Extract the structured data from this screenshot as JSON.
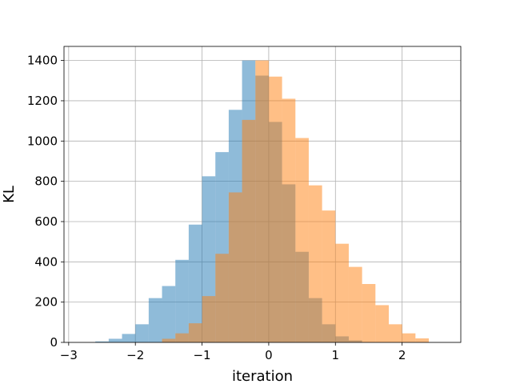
{
  "chart_data": {
    "type": "histogram",
    "xlabel": "iteration",
    "ylabel": "KL",
    "xlim": [
      -3.07,
      2.88
    ],
    "ylim": [
      0,
      1470
    ],
    "xticks": [
      -3,
      -2,
      -1,
      0,
      1,
      2
    ],
    "xtick_labels": [
      "−3",
      "−2",
      "−1",
      "0",
      "1",
      "2"
    ],
    "yticks": [
      0,
      200,
      400,
      600,
      800,
      1000,
      1200,
      1400
    ],
    "ytick_labels": [
      "0",
      "200",
      "400",
      "600",
      "800",
      "1000",
      "1200",
      "1400"
    ],
    "grid": true,
    "series": [
      {
        "color": "#1f77b4",
        "alpha": 0.5,
        "bins": [
          -2.6,
          -2.4,
          -2.2,
          -2.0,
          -1.8,
          -1.6,
          -1.4,
          -1.2,
          -1.0,
          -0.8,
          -0.6,
          -0.4,
          -0.2,
          0.0,
          0.2,
          0.4,
          0.6,
          0.8,
          1.0,
          1.2,
          1.4
        ],
        "values": [
          5,
          18,
          42,
          90,
          220,
          280,
          410,
          585,
          825,
          945,
          1155,
          1400,
          1325,
          1095,
          785,
          450,
          220,
          90,
          30,
          10
        ]
      },
      {
        "color": "#ff7f0e",
        "alpha": 0.5,
        "bins": [
          -1.6,
          -1.4,
          -1.2,
          -1.0,
          -0.8,
          -0.6,
          -0.4,
          -0.2,
          0.0,
          0.2,
          0.4,
          0.6,
          0.8,
          1.0,
          1.2,
          1.4,
          1.6,
          1.8,
          2.0,
          2.2,
          2.4
        ],
        "values": [
          18,
          45,
          95,
          230,
          440,
          745,
          1105,
          1400,
          1320,
          1210,
          1015,
          780,
          655,
          490,
          375,
          290,
          185,
          90,
          45,
          20
        ]
      }
    ]
  }
}
